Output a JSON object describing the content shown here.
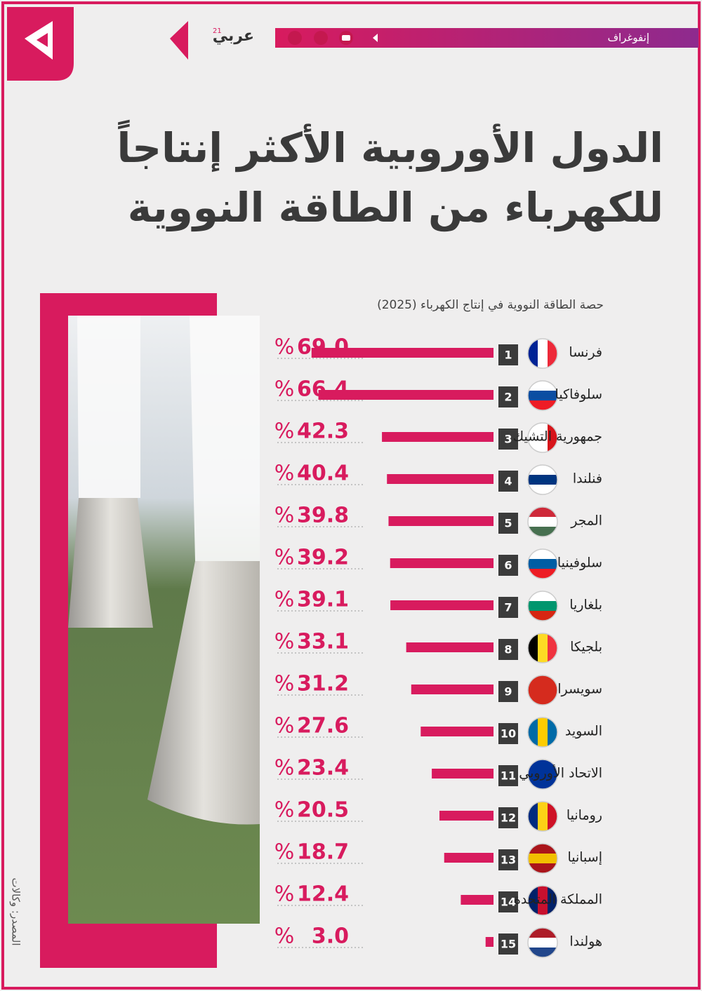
{
  "header": {
    "section": "إنفوغراف",
    "brand": "عربي",
    "brand_sup": "21"
  },
  "chart_data": {
    "type": "bar",
    "orientation": "horizontal",
    "title": [
      "الدول الأوروبية الأكثر إنتاجاً",
      "للكهرباء من الطاقة النووية"
    ],
    "subtitle": "حصة الطاقة النووية في إنتاج الكهرباء (2025)",
    "categories": [
      "فرنسا",
      "سلوفاكيا",
      "جمهورية التشيك",
      "فنلندا",
      "المجر",
      "سلوفينيا",
      "بلغاريا",
      "بلجيكا",
      "سويسرا",
      "السويد",
      "الاتحاد الأوروبي",
      "رومانيا",
      "إسبانيا",
      "المملكة المتحدة",
      "هولندا"
    ],
    "ranks": [
      1,
      2,
      3,
      4,
      5,
      6,
      7,
      8,
      9,
      10,
      11,
      12,
      13,
      14,
      15
    ],
    "values": [
      69.0,
      66.4,
      42.3,
      40.4,
      39.8,
      39.2,
      39.1,
      33.1,
      31.2,
      27.6,
      23.4,
      20.5,
      18.7,
      12.4,
      3.0
    ],
    "value_labels": [
      "69.0",
      "66.4",
      "42.3",
      "40.4",
      "39.8",
      "39.2",
      "39.1",
      "33.1",
      "31.2",
      "27.6",
      "23.4",
      "20.5",
      "18.7",
      "12.4",
      "3.0"
    ],
    "unit": "%",
    "color": "#d81b5e",
    "xlim": [
      0,
      70
    ],
    "source": "المصدر: وكالات"
  }
}
